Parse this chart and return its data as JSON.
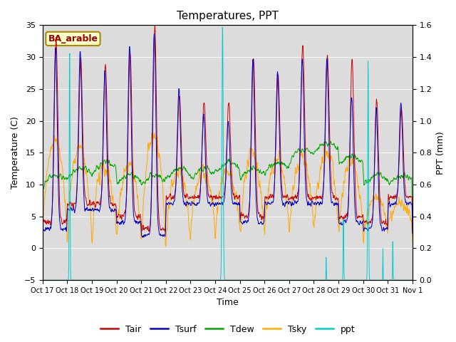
{
  "title": "Temperatures, PPT",
  "xlabel": "Time",
  "ylabel_left": "Temperature (C)",
  "ylabel_right": "PPT (mm)",
  "ylim_left": [
    -5,
    35
  ],
  "ylim_right": [
    0.0,
    1.6
  ],
  "yticks_left": [
    -5,
    0,
    5,
    10,
    15,
    20,
    25,
    30,
    35
  ],
  "yticks_right": [
    0.0,
    0.2,
    0.4,
    0.6,
    0.8,
    1.0,
    1.2,
    1.4,
    1.6
  ],
  "xtick_labels": [
    "Oct 17",
    "Oct 18",
    "Oct 19",
    "Oct 20",
    "Oct 21",
    "Oct 22",
    "Oct 23",
    "Oct 24",
    "Oct 25",
    "Oct 26",
    "Oct 27",
    "Oct 28",
    "Oct 29",
    "Oct 30",
    "Oct 31",
    "Nov 1"
  ],
  "colors": {
    "Tair": "#cc0000",
    "Tsurf": "#0000cc",
    "Tdew": "#00aa00",
    "Tsky": "#ffaa00",
    "ppt": "#00cccc"
  },
  "legend_label": "BA_arable",
  "bg_color": "#dcdcdc",
  "n_days": 15,
  "pts_per_day": 96,
  "title_fontsize": 11,
  "label_fontsize": 9,
  "tick_fontsize": 8
}
